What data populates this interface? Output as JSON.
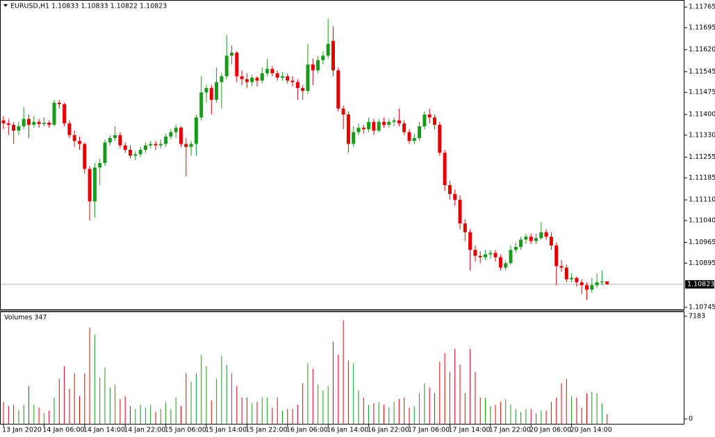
{
  "chart_data": {
    "type": "candlestick",
    "title": "EURUSD,H1  1.10833 1.10833 1.10822 1.10823",
    "volume_title": "Volumes 347",
    "up_color": "#1a9a1a",
    "down_color": "#e60000",
    "current_line_color": "#b0b0b0",
    "ylim": [
      1.10738,
      1.11789
    ],
    "yticks": [
      1.11765,
      1.11695,
      {
        "value": 1.1162,
        "label": "1.11620"
      },
      1.11545,
      1.11475,
      {
        "value": 1.114,
        "label": "1.11400"
      },
      {
        "value": 1.1133,
        "label": "1.11330"
      },
      1.11255,
      1.11185,
      {
        "value": 1.1111,
        "label": "1.11110"
      },
      {
        "value": 1.1104,
        "label": "1.11040"
      },
      1.10965,
      1.10895,
      1.10745
    ],
    "current_price": 1.10823,
    "volume_ylim": [
      0,
      7183
    ],
    "volume_yticks": [
      7183,
      0
    ],
    "categories": [
      "13 Jan 2020",
      null,
      null,
      null,
      null,
      null,
      null,
      null,
      "14 Jan 06:00",
      null,
      null,
      null,
      null,
      null,
      null,
      null,
      "14 Jan 14:00",
      null,
      null,
      null,
      null,
      null,
      null,
      null,
      "14 Jan 22:00",
      null,
      null,
      null,
      null,
      null,
      null,
      null,
      "15 Jan 06:00",
      null,
      null,
      null,
      null,
      null,
      null,
      null,
      "15 Jan 14:00",
      null,
      null,
      null,
      null,
      null,
      null,
      null,
      "15 Jan 22:00",
      null,
      null,
      null,
      null,
      null,
      null,
      null,
      "16 Jan 06:00",
      null,
      null,
      null,
      null,
      null,
      null,
      null,
      "16 Jan 14:00",
      null,
      null,
      null,
      null,
      null,
      null,
      null,
      "16 Jan 22:00",
      null,
      null,
      null,
      null,
      null,
      null,
      null,
      "17 Jan 06:00",
      null,
      null,
      null,
      null,
      null,
      null,
      null,
      "17 Jan 14:00",
      null,
      null,
      null,
      null,
      null,
      null,
      null,
      "17 Jan 22:00",
      null,
      null,
      null,
      null,
      null,
      null,
      null,
      "20 Jan 06:00",
      null,
      null,
      null,
      null,
      null,
      null,
      null,
      "20 Jan 14:00",
      null,
      null,
      null,
      null,
      null,
      null,
      null
    ],
    "candles": [
      [
        1.1138,
        1.11395,
        1.1135,
        1.1137
      ],
      [
        1.1137,
        1.11385,
        1.1133,
        1.11365
      ],
      [
        1.11365,
        1.11375,
        1.113,
        1.11345
      ],
      [
        1.11345,
        1.11375,
        1.1133,
        1.1136
      ],
      [
        1.1136,
        1.11425,
        1.1135,
        1.11385
      ],
      [
        1.11385,
        1.114,
        1.1132,
        1.11365
      ],
      [
        1.11365,
        1.11395,
        1.11355,
        1.11375
      ],
      [
        1.11375,
        1.11385,
        1.11355,
        1.11368
      ],
      [
        1.11368,
        1.1139,
        1.1136,
        1.11372
      ],
      [
        1.11372,
        1.1138,
        1.11355,
        1.11365
      ],
      [
        1.11365,
        1.1145,
        1.1136,
        1.1144
      ],
      [
        1.1144,
        1.1145,
        1.1142,
        1.11435
      ],
      [
        1.11435,
        1.1144,
        1.1136,
        1.1137
      ],
      [
        1.1137,
        1.1138,
        1.1132,
        1.1133
      ],
      [
        1.1133,
        1.11345,
        1.1129,
        1.1131
      ],
      [
        1.1131,
        1.11325,
        1.1128,
        1.113
      ],
      [
        1.113,
        1.11305,
        1.112,
        1.11215
      ],
      [
        1.11215,
        1.11225,
        1.1104,
        1.11105
      ],
      [
        1.11105,
        1.11235,
        1.1105,
        1.1122
      ],
      [
        1.1122,
        1.1125,
        1.1116,
        1.11235
      ],
      [
        1.11235,
        1.11315,
        1.11225,
        1.11305
      ],
      [
        1.11305,
        1.1133,
        1.11295,
        1.1132
      ],
      [
        1.1132,
        1.1136,
        1.1131,
        1.1133
      ],
      [
        1.1133,
        1.1134,
        1.11285,
        1.11295
      ],
      [
        1.11295,
        1.11305,
        1.1127,
        1.1128
      ],
      [
        1.1128,
        1.11295,
        1.1125,
        1.1126
      ],
      [
        1.1126,
        1.11275,
        1.11245,
        1.11265
      ],
      [
        1.11265,
        1.1129,
        1.11255,
        1.1128
      ],
      [
        1.1128,
        1.11305,
        1.1127,
        1.11295
      ],
      [
        1.11295,
        1.1131,
        1.11285,
        1.113
      ],
      [
        1.113,
        1.1131,
        1.1128,
        1.11295
      ],
      [
        1.11295,
        1.11315,
        1.11285,
        1.113
      ],
      [
        1.113,
        1.11335,
        1.1129,
        1.11325
      ],
      [
        1.11325,
        1.1135,
        1.11315,
        1.1134
      ],
      [
        1.1134,
        1.11365,
        1.1132,
        1.11355
      ],
      [
        1.11355,
        1.1136,
        1.1129,
        1.113
      ],
      [
        1.113,
        1.1132,
        1.1119,
        1.1129
      ],
      [
        1.1129,
        1.1131,
        1.1126,
        1.113
      ],
      [
        1.113,
        1.114,
        1.1126,
        1.1139
      ],
      [
        1.1139,
        1.1153,
        1.1138,
        1.11475
      ],
      [
        1.11475,
        1.115,
        1.1144,
        1.1149
      ],
      [
        1.1149,
        1.115,
        1.114,
        1.1145
      ],
      [
        1.1145,
        1.1156,
        1.1144,
        1.1151
      ],
      [
        1.1151,
        1.1154,
        1.1142,
        1.1153
      ],
      [
        1.1153,
        1.1167,
        1.1152,
        1.116
      ],
      [
        1.116,
        1.11635,
        1.1157,
        1.1161
      ],
      [
        1.1161,
        1.11615,
        1.1151,
        1.1153
      ],
      [
        1.1153,
        1.1155,
        1.115,
        1.1152
      ],
      [
        1.1152,
        1.1154,
        1.1149,
        1.1151
      ],
      [
        1.1151,
        1.11535,
        1.11495,
        1.11525
      ],
      [
        1.11525,
        1.1153,
        1.11495,
        1.11515
      ],
      [
        1.11515,
        1.1156,
        1.11505,
        1.1154
      ],
      [
        1.1154,
        1.1159,
        1.1153,
        1.11555
      ],
      [
        1.11555,
        1.11565,
        1.1153,
        1.1154
      ],
      [
        1.1154,
        1.1155,
        1.11515,
        1.11525
      ],
      [
        1.11525,
        1.11545,
        1.11515,
        1.1153
      ],
      [
        1.1153,
        1.1154,
        1.11505,
        1.11515
      ],
      [
        1.11515,
        1.1153,
        1.11495,
        1.1151
      ],
      [
        1.1151,
        1.1152,
        1.1145,
        1.1149
      ],
      [
        1.1149,
        1.115,
        1.1145,
        1.1148
      ],
      [
        1.1148,
        1.1164,
        1.1147,
        1.1157
      ],
      [
        1.1157,
        1.1159,
        1.115,
        1.1155
      ],
      [
        1.1155,
        1.116,
        1.1154,
        1.11585
      ],
      [
        1.11585,
        1.11615,
        1.1157,
        1.116
      ],
      [
        1.116,
        1.11725,
        1.1159,
        1.1164
      ],
      [
        1.1165,
        1.117,
        1.1153,
        1.1155
      ],
      [
        1.1155,
        1.1156,
        1.1141,
        1.1142
      ],
      [
        1.1142,
        1.1143,
        1.1135,
        1.114
      ],
      [
        1.114,
        1.1141,
        1.1127,
        1.113
      ],
      [
        1.113,
        1.1136,
        1.1129,
        1.1134
      ],
      [
        1.1134,
        1.1137,
        1.1133,
        1.11355
      ],
      [
        1.11355,
        1.11365,
        1.11335,
        1.1135
      ],
      [
        1.1135,
        1.1139,
        1.1134,
        1.11375
      ],
      [
        1.11375,
        1.11385,
        1.1133,
        1.11345
      ],
      [
        1.11345,
        1.11385,
        1.1134,
        1.11375
      ],
      [
        1.11375,
        1.1139,
        1.11355,
        1.11365
      ],
      [
        1.11365,
        1.11385,
        1.11355,
        1.11375
      ],
      [
        1.11375,
        1.1139,
        1.1136,
        1.1138
      ],
      [
        1.1138,
        1.1142,
        1.1136,
        1.1137
      ],
      [
        1.1137,
        1.1138,
        1.1133,
        1.1134
      ],
      [
        1.1134,
        1.1135,
        1.113,
        1.1131
      ],
      [
        1.1131,
        1.11335,
        1.113,
        1.1132
      ],
      [
        1.1132,
        1.11375,
        1.1131,
        1.1136
      ],
      [
        1.1136,
        1.1141,
        1.1135,
        1.114
      ],
      [
        1.114,
        1.1142,
        1.1137,
        1.1139
      ],
      [
        1.1139,
        1.114,
        1.1135,
        1.11365
      ],
      [
        1.11365,
        1.11375,
        1.1126,
        1.1127
      ],
      [
        1.1127,
        1.1128,
        1.1114,
        1.1116
      ],
      [
        1.1116,
        1.11175,
        1.1111,
        1.1113
      ],
      [
        1.1113,
        1.11145,
        1.1109,
        1.1111
      ],
      [
        1.1111,
        1.11125,
        1.1101,
        1.1103
      ],
      [
        1.1103,
        1.11045,
        1.1097,
        1.11
      ],
      [
        1.11,
        1.1101,
        1.1087,
        1.1094
      ],
      [
        1.1094,
        1.10955,
        1.109,
        1.1092
      ],
      [
        1.1092,
        1.10935,
        1.10895,
        1.10915
      ],
      [
        1.10915,
        1.1094,
        1.10905,
        1.10925
      ],
      [
        1.10925,
        1.1094,
        1.1091,
        1.1093
      ],
      [
        1.1093,
        1.1094,
        1.109,
        1.10915
      ],
      [
        1.10915,
        1.10925,
        1.1087,
        1.1088
      ],
      [
        1.1088,
        1.10905,
        1.1087,
        1.10895
      ],
      [
        1.10895,
        1.10955,
        1.1089,
        1.1094
      ],
      [
        1.1094,
        1.10965,
        1.1093,
        1.1095
      ],
      [
        1.1095,
        1.10985,
        1.1094,
        1.10975
      ],
      [
        1.10975,
        1.10995,
        1.1096,
        1.10985
      ],
      [
        1.10985,
        1.10995,
        1.1096,
        1.1097
      ],
      [
        1.1097,
        1.10995,
        1.1096,
        1.1098
      ],
      [
        1.1098,
        1.11035,
        1.10975,
        1.11
      ],
      [
        1.11,
        1.1101,
        1.10975,
        1.10985
      ],
      [
        1.10985,
        1.11,
        1.1094,
        1.10955
      ],
      [
        1.10955,
        1.10965,
        1.1082,
        1.10885
      ],
      [
        1.10885,
        1.10905,
        1.10865,
        1.1088
      ],
      [
        1.1088,
        1.1089,
        1.1083,
        1.1084
      ],
      [
        1.1084,
        1.1086,
        1.1083,
        1.10845
      ],
      [
        1.10845,
        1.1085,
        1.10815,
        1.1083
      ],
      [
        1.1083,
        1.1084,
        1.1079,
        1.1082
      ],
      [
        1.1082,
        1.1083,
        1.1077,
        1.10805
      ],
      [
        1.10805,
        1.10845,
        1.10795,
        1.1082
      ],
      [
        1.1082,
        1.1086,
        1.1081,
        1.1083
      ],
      [
        1.1083,
        1.1087,
        1.1082,
        1.10833
      ],
      [
        1.10833,
        1.10833,
        1.10822,
        1.10823
      ]
    ],
    "volumes": [
      1200,
      900,
      1000,
      600,
      1000,
      2300,
      1000,
      800,
      400,
      600,
      1500,
      2800,
      3700,
      2100,
      3200,
      1600,
      3200,
      6400,
      5900,
      2900,
      3600,
      2200,
      2400,
      1400,
      1600,
      900,
      700,
      1000,
      800,
      1000,
      500,
      700,
      1200,
      700,
      1500,
      900,
      3200,
      2600,
      3200,
      4500,
      3700,
      1300,
      2800,
      4400,
      3800,
      3200,
      2300,
      1500,
      1500,
      1100,
      1200,
      1500,
      1500,
      800,
      1500,
      600,
      700,
      700,
      1000,
      2500,
      3900,
      3500,
      2400,
      2000,
      2300,
      5400,
      4500,
      6900,
      4100,
      3900,
      2000,
      1500,
      1000,
      1100,
      1200,
      1000,
      800,
      1200,
      1400,
      1500,
      800,
      900,
      1800,
      2500,
      2200,
      1800,
      4000,
      4600,
      3300,
      4900,
      3800,
      1800,
      4900,
      3300,
      1500,
      1500,
      900,
      1000,
      1200,
      1400,
      1000,
      700,
      500,
      700,
      700,
      400,
      600,
      600,
      1200,
      1500,
      2500,
      2800,
      1600,
      1500,
      800,
      1800,
      1900,
      1800,
      1100,
      347
    ]
  }
}
